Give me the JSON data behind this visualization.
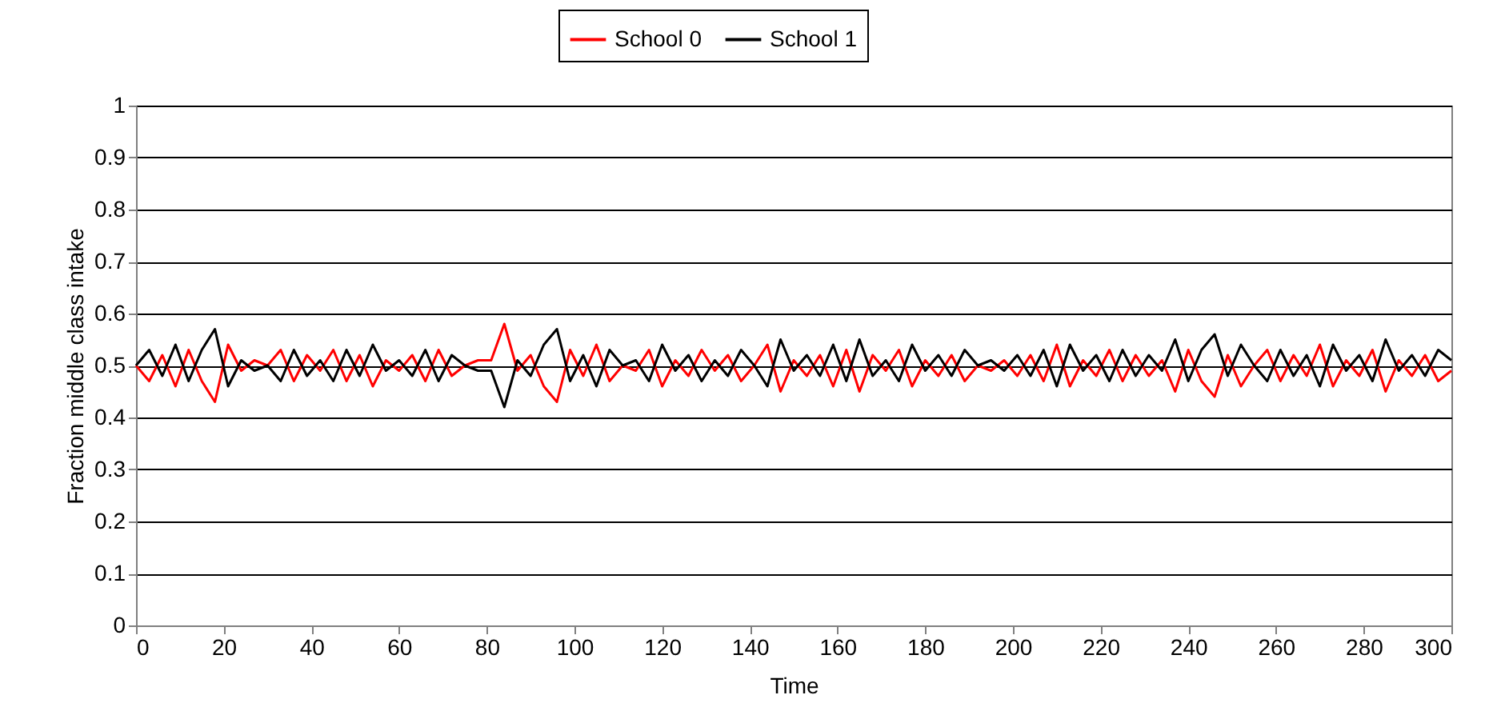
{
  "chart_data": {
    "type": "line",
    "xlabel": "Time",
    "ylabel": "Fraction middle class intake",
    "x": [
      0,
      3,
      6,
      9,
      12,
      15,
      18,
      21,
      24,
      27,
      30,
      33,
      36,
      39,
      42,
      45,
      48,
      51,
      54,
      57,
      60,
      63,
      66,
      69,
      72,
      75,
      78,
      81,
      84,
      87,
      90,
      93,
      96,
      99,
      102,
      105,
      108,
      111,
      114,
      117,
      120,
      123,
      126,
      129,
      132,
      135,
      138,
      141,
      144,
      147,
      150,
      153,
      156,
      159,
      162,
      165,
      168,
      171,
      174,
      177,
      180,
      183,
      186,
      189,
      192,
      195,
      198,
      201,
      204,
      207,
      210,
      213,
      216,
      219,
      222,
      225,
      228,
      231,
      234,
      237,
      240,
      243,
      246,
      249,
      252,
      255,
      258,
      261,
      264,
      267,
      270,
      273,
      276,
      279,
      282,
      285,
      288,
      291,
      294,
      297,
      300
    ],
    "series": [
      {
        "name": "School 0",
        "color": "#ff0000",
        "values": [
          0.5,
          0.47,
          0.52,
          0.46,
          0.53,
          0.47,
          0.43,
          0.54,
          0.49,
          0.51,
          0.5,
          0.53,
          0.47,
          0.52,
          0.49,
          0.53,
          0.47,
          0.52,
          0.46,
          0.51,
          0.49,
          0.52,
          0.47,
          0.53,
          0.48,
          0.5,
          0.51,
          0.51,
          0.58,
          0.49,
          0.52,
          0.46,
          0.43,
          0.53,
          0.48,
          0.54,
          0.47,
          0.5,
          0.49,
          0.53,
          0.46,
          0.51,
          0.48,
          0.53,
          0.49,
          0.52,
          0.47,
          0.5,
          0.54,
          0.45,
          0.51,
          0.48,
          0.52,
          0.46,
          0.53,
          0.45,
          0.52,
          0.49,
          0.53,
          0.46,
          0.51,
          0.48,
          0.52,
          0.47,
          0.5,
          0.49,
          0.51,
          0.48,
          0.52,
          0.47,
          0.54,
          0.46,
          0.51,
          0.48,
          0.53,
          0.47,
          0.52,
          0.48,
          0.51,
          0.45,
          0.53,
          0.47,
          0.44,
          0.52,
          0.46,
          0.5,
          0.53,
          0.47,
          0.52,
          0.48,
          0.54,
          0.46,
          0.51,
          0.48,
          0.53,
          0.45,
          0.51,
          0.48,
          0.52,
          0.47,
          0.49
        ]
      },
      {
        "name": "School 1",
        "color": "#000000",
        "values": [
          0.5,
          0.53,
          0.48,
          0.54,
          0.47,
          0.53,
          0.57,
          0.46,
          0.51,
          0.49,
          0.5,
          0.47,
          0.53,
          0.48,
          0.51,
          0.47,
          0.53,
          0.48,
          0.54,
          0.49,
          0.51,
          0.48,
          0.53,
          0.47,
          0.52,
          0.5,
          0.49,
          0.49,
          0.42,
          0.51,
          0.48,
          0.54,
          0.57,
          0.47,
          0.52,
          0.46,
          0.53,
          0.5,
          0.51,
          0.47,
          0.54,
          0.49,
          0.52,
          0.47,
          0.51,
          0.48,
          0.53,
          0.5,
          0.46,
          0.55,
          0.49,
          0.52,
          0.48,
          0.54,
          0.47,
          0.55,
          0.48,
          0.51,
          0.47,
          0.54,
          0.49,
          0.52,
          0.48,
          0.53,
          0.5,
          0.51,
          0.49,
          0.52,
          0.48,
          0.53,
          0.46,
          0.54,
          0.49,
          0.52,
          0.47,
          0.53,
          0.48,
          0.52,
          0.49,
          0.55,
          0.47,
          0.53,
          0.56,
          0.48,
          0.54,
          0.5,
          0.47,
          0.53,
          0.48,
          0.52,
          0.46,
          0.54,
          0.49,
          0.52,
          0.47,
          0.55,
          0.49,
          0.52,
          0.48,
          0.53,
          0.51
        ]
      }
    ],
    "xlim": [
      0,
      300
    ],
    "xticks": [
      0,
      20,
      40,
      60,
      80,
      100,
      120,
      140,
      160,
      180,
      200,
      220,
      240,
      260,
      280,
      300
    ],
    "ylim": [
      0,
      1
    ],
    "yticks": [
      0,
      0.1,
      0.2,
      0.3,
      0.4,
      0.5,
      0.6,
      0.7,
      0.8,
      0.9,
      1
    ],
    "grid": "y",
    "legend": "top",
    "marker": "none",
    "line_style": "solid"
  }
}
